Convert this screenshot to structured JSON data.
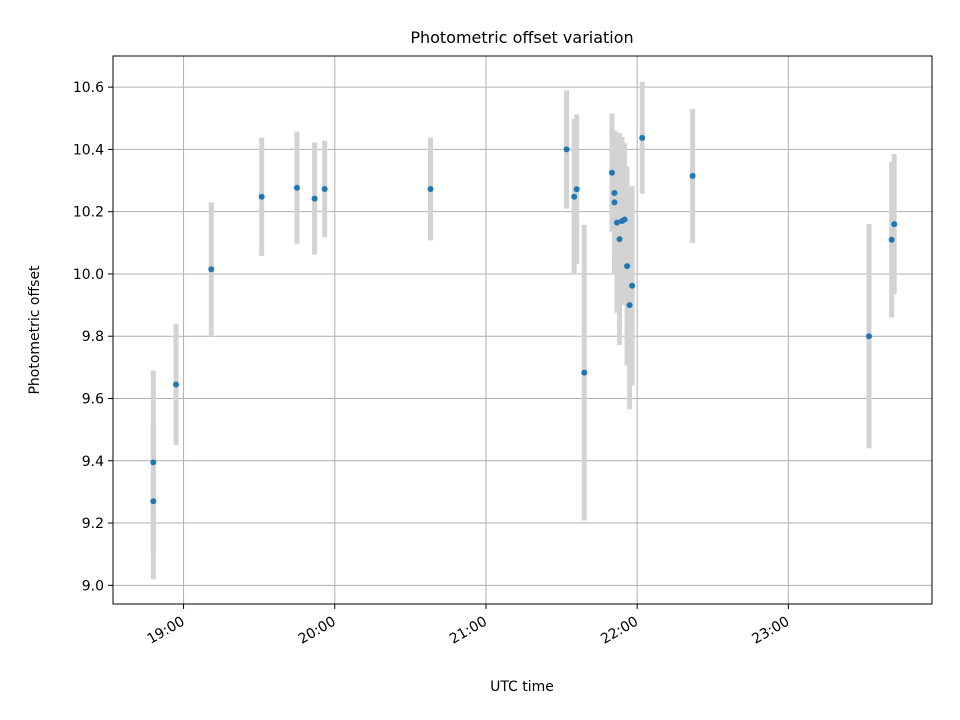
{
  "chart_data": {
    "type": "scatter",
    "title": "Photometric offset variation",
    "xlabel": "UTC time",
    "ylabel": "Photometric offset",
    "x_ticks": [
      "19:00",
      "20:00",
      "21:00",
      "22:00",
      "23:00"
    ],
    "y_ticks": [
      "9.0",
      "9.2",
      "9.4",
      "9.6",
      "9.8",
      "10.0",
      "10.2",
      "10.4",
      "10.6"
    ],
    "xlim": [
      "18:32",
      "23:57"
    ],
    "ylim": [
      8.94,
      10.7
    ],
    "grid": true,
    "legend": "none",
    "point_color": "#1f77b4",
    "errorbar_color": "#d3d3d3",
    "points": [
      {
        "x": "18:48",
        "y": 9.27,
        "yerr": 0.25
      },
      {
        "x": "18:48",
        "y": 9.395,
        "yerr": 0.295
      },
      {
        "x": "18:57",
        "y": 9.645,
        "yerr": 0.195
      },
      {
        "x": "19:11",
        "y": 10.015,
        "yerr": 0.215
      },
      {
        "x": "19:31",
        "y": 10.248,
        "yerr": 0.19
      },
      {
        "x": "19:45",
        "y": 10.277,
        "yerr": 0.18
      },
      {
        "x": "19:52",
        "y": 10.242,
        "yerr": 0.18
      },
      {
        "x": "19:56",
        "y": 10.273,
        "yerr": 0.155
      },
      {
        "x": "20:38",
        "y": 10.273,
        "yerr": 0.165
      },
      {
        "x": "21:32",
        "y": 10.4,
        "yerr": 0.19
      },
      {
        "x": "21:35",
        "y": 10.248,
        "yerr": 0.25
      },
      {
        "x": "21:36",
        "y": 10.272,
        "yerr": 0.24
      },
      {
        "x": "21:39",
        "y": 9.683,
        "yerr": 0.475
      },
      {
        "x": "21:50",
        "y": 10.325,
        "yerr": 0.19
      },
      {
        "x": "21:51",
        "y": 10.26,
        "yerr": 0.2
      },
      {
        "x": "21:51",
        "y": 10.23,
        "yerr": 0.23
      },
      {
        "x": "21:52",
        "y": 10.165,
        "yerr": 0.29
      },
      {
        "x": "21:53",
        "y": 10.112,
        "yerr": 0.34
      },
      {
        "x": "21:54",
        "y": 10.17,
        "yerr": 0.27
      },
      {
        "x": "21:55",
        "y": 10.175,
        "yerr": 0.245
      },
      {
        "x": "21:56",
        "y": 10.025,
        "yerr": 0.32
      },
      {
        "x": "21:57",
        "y": 9.9,
        "yerr": 0.335
      },
      {
        "x": "21:58",
        "y": 9.962,
        "yerr": 0.32
      },
      {
        "x": "22:02",
        "y": 10.437,
        "yerr": 0.18
      },
      {
        "x": "22:22",
        "y": 10.315,
        "yerr": 0.215
      },
      {
        "x": "23:32",
        "y": 9.8,
        "yerr": 0.36
      },
      {
        "x": "23:41",
        "y": 10.11,
        "yerr": 0.25
      },
      {
        "x": "23:42",
        "y": 10.16,
        "yerr": 0.225
      }
    ]
  }
}
